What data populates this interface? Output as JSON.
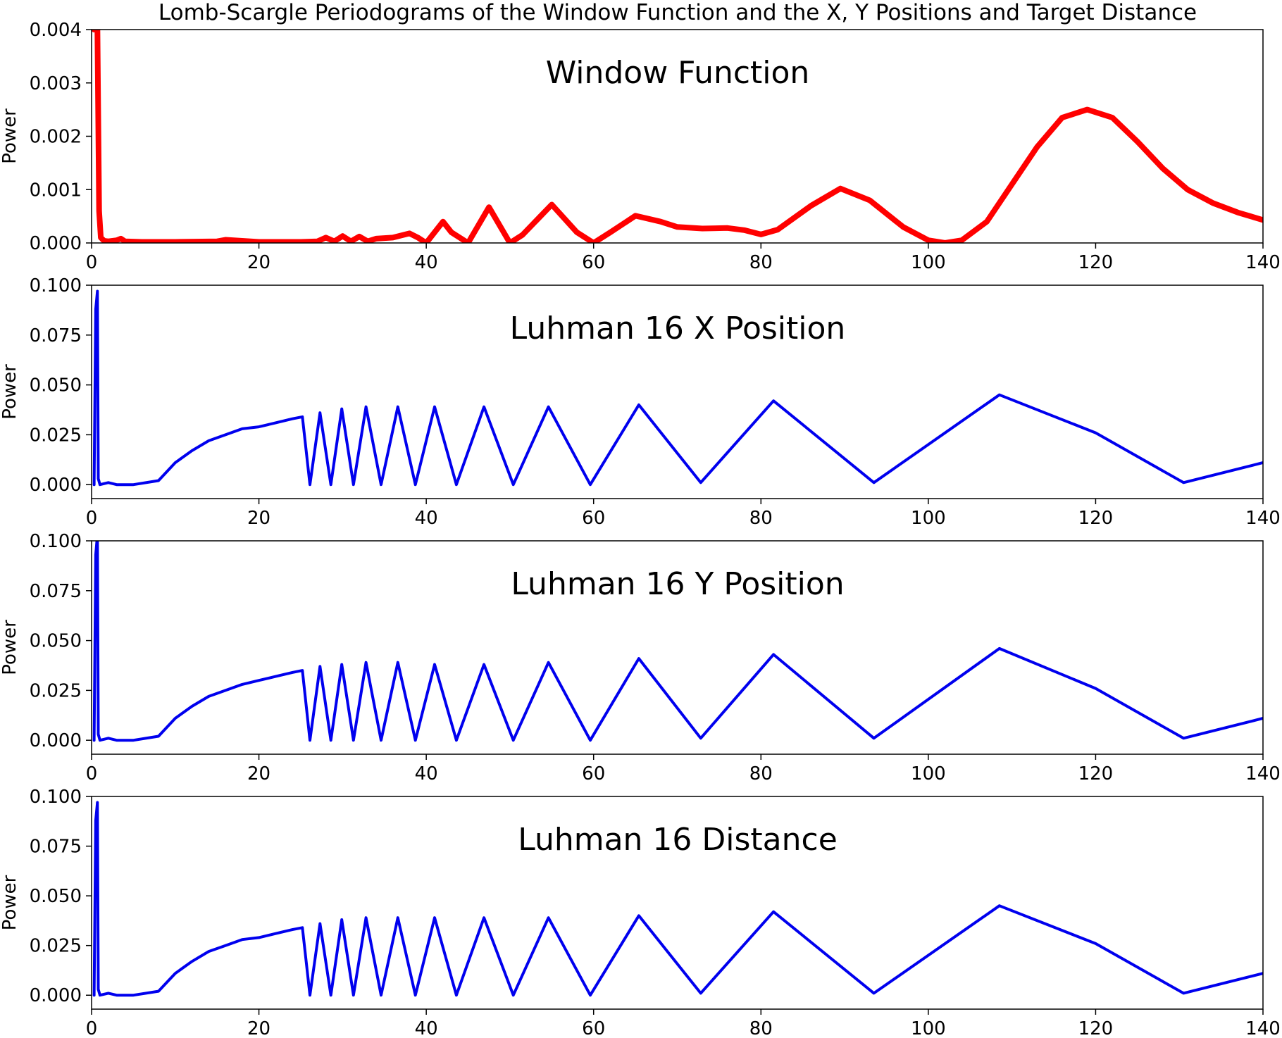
{
  "figure": {
    "suptitle": "Lomb-Scargle Periodograms of the Window Function and the X, Y Positions and Target Distance"
  },
  "colors": {
    "window": "#ff0000",
    "position": "#0000ee",
    "axes": "#000000"
  },
  "chart_data": [
    {
      "type": "line",
      "title": "Window Function",
      "xlabel": "",
      "ylabel": "Power",
      "xlim": [
        0,
        140
      ],
      "ylim": [
        0,
        0.004
      ],
      "xticks": [
        0,
        20,
        40,
        60,
        80,
        100,
        120,
        140
      ],
      "xtick_labels": [
        "0",
        "20",
        "40",
        "60",
        "80",
        "100",
        "120",
        "140"
      ],
      "yticks": [
        0,
        0.001,
        0.002,
        0.003,
        0.004
      ],
      "ytick_labels": [
        "0.000",
        "0.001",
        "0.002",
        "0.003",
        "0.004"
      ],
      "grid": false,
      "color": "#ff0000",
      "series": [
        {
          "x": [
            0.3,
            0.5,
            0.7,
            0.9,
            1.1,
            1.5,
            2,
            3,
            3.5,
            4,
            6,
            10,
            15,
            16,
            20,
            22,
            25,
            27,
            28,
            29,
            30,
            31,
            32,
            33,
            34,
            36,
            38,
            39,
            40,
            41,
            42,
            43,
            45,
            47.5,
            50,
            51.5,
            55,
            58,
            60,
            62,
            65,
            68,
            70,
            73,
            76,
            78,
            80,
            82,
            86,
            89.5,
            93,
            97,
            100,
            102,
            104,
            107,
            110,
            113,
            116,
            119,
            122,
            125,
            128,
            131,
            134,
            137,
            140
          ],
          "y": [
            0.004,
            0.004,
            0.004,
            0.0006,
            0.0001,
            4e-05,
            3e-05,
            5e-05,
            8e-05,
            3e-05,
            2e-05,
            2e-05,
            3e-05,
            6e-05,
            2e-05,
            2e-05,
            2e-05,
            3e-05,
            0.0001,
            3e-05,
            0.00013,
            3e-05,
            0.00012,
            3e-05,
            8e-05,
            0.0001,
            0.00018,
            0.0001,
            0.0,
            0.0002,
            0.0004,
            0.0002,
            0.0,
            0.00067,
            0.0,
            0.00015,
            0.00072,
            0.0002,
            0.0,
            0.0002,
            0.00051,
            0.0004,
            0.0003,
            0.00027,
            0.00028,
            0.00024,
            0.00016,
            0.00025,
            0.0007,
            0.00102,
            0.0008,
            0.0003,
            5e-05,
            0.0,
            5e-05,
            0.0004,
            0.0011,
            0.0018,
            0.00235,
            0.0025,
            0.00235,
            0.0019,
            0.0014,
            0.001,
            0.00075,
            0.00057,
            0.00043
          ]
        }
      ]
    },
    {
      "type": "line",
      "title": "Luhman 16 X Position",
      "xlabel": "",
      "ylabel": "Power",
      "xlim": [
        0,
        140
      ],
      "ylim": [
        -0.007,
        0.1
      ],
      "xticks": [
        0,
        20,
        40,
        60,
        80,
        100,
        120,
        140
      ],
      "xtick_labels": [
        "0",
        "20",
        "40",
        "60",
        "80",
        "100",
        "120",
        "140"
      ],
      "yticks": [
        0,
        0.025,
        0.05,
        0.075,
        0.1
      ],
      "ytick_labels": [
        "0.000",
        "0.025",
        "0.050",
        "0.075",
        "0.100"
      ],
      "grid": false,
      "color": "#0000ee",
      "series": [
        {
          "x": [
            0.3,
            0.5,
            0.7,
            0.8,
            1.0,
            2,
            3,
            5,
            8,
            10,
            12,
            14,
            16,
            18,
            20,
            22,
            24,
            25.2,
            26.1,
            27.3,
            28.6,
            29.9,
            31.3,
            32.8,
            34.6,
            36.6,
            38.7,
            41.0,
            43.6,
            46.9,
            50.4,
            54.6,
            59.6,
            65.4,
            72.8,
            81.5,
            93.5,
            108.5,
            120,
            130.5,
            140
          ],
          "y": [
            0.0,
            0.088,
            0.097,
            0.003,
            0.0,
            0.001,
            0.0,
            0.0,
            0.002,
            0.011,
            0.017,
            0.022,
            0.025,
            0.028,
            0.029,
            0.031,
            0.033,
            0.034,
            0.0,
            0.036,
            0.0,
            0.038,
            0.0,
            0.039,
            0.0,
            0.039,
            0.0,
            0.039,
            0.0,
            0.039,
            0.0,
            0.039,
            0.0,
            0.04,
            0.001,
            0.042,
            0.001,
            0.045,
            0.026,
            0.001,
            0.011
          ]
        }
      ]
    },
    {
      "type": "line",
      "title": "Luhman 16 Y Position",
      "xlabel": "",
      "ylabel": "Power",
      "xlim": [
        0,
        140
      ],
      "ylim": [
        -0.007,
        0.1
      ],
      "xticks": [
        0,
        20,
        40,
        60,
        80,
        100,
        120,
        140
      ],
      "xtick_labels": [
        "0",
        "20",
        "40",
        "60",
        "80",
        "100",
        "120",
        "140"
      ],
      "yticks": [
        0,
        0.025,
        0.05,
        0.075,
        0.1
      ],
      "ytick_labels": [
        "0.000",
        "0.025",
        "0.050",
        "0.075",
        "0.100"
      ],
      "grid": false,
      "color": "#0000ee",
      "series": [
        {
          "x": [
            0.3,
            0.5,
            0.7,
            0.8,
            1.0,
            2,
            3,
            5,
            8,
            10,
            12,
            14,
            16,
            18,
            20,
            22,
            24,
            25.2,
            26.1,
            27.3,
            28.6,
            29.9,
            31.3,
            32.8,
            34.6,
            36.6,
            38.7,
            41.0,
            43.6,
            46.9,
            50.4,
            54.6,
            59.6,
            65.4,
            72.8,
            81.5,
            93.5,
            108.5,
            120,
            130.5,
            140
          ],
          "y": [
            0.0,
            0.093,
            0.103,
            0.003,
            0.0,
            0.001,
            0.0,
            0.0,
            0.002,
            0.011,
            0.017,
            0.022,
            0.025,
            0.028,
            0.03,
            0.032,
            0.034,
            0.035,
            0.0,
            0.037,
            0.0,
            0.038,
            0.0,
            0.039,
            0.0,
            0.039,
            0.0,
            0.038,
            0.0,
            0.038,
            0.0,
            0.039,
            0.0,
            0.041,
            0.001,
            0.043,
            0.001,
            0.046,
            0.026,
            0.001,
            0.011
          ]
        }
      ]
    },
    {
      "type": "line",
      "title": "Luhman 16 Distance",
      "xlabel": "",
      "ylabel": "Power",
      "xlim": [
        0,
        140
      ],
      "ylim": [
        -0.007,
        0.1
      ],
      "xticks": [
        0,
        20,
        40,
        60,
        80,
        100,
        120,
        140
      ],
      "xtick_labels": [
        "0",
        "20",
        "40",
        "60",
        "80",
        "100",
        "120",
        "140"
      ],
      "yticks": [
        0,
        0.025,
        0.05,
        0.075,
        0.1
      ],
      "ytick_labels": [
        "0.000",
        "0.025",
        "0.050",
        "0.075",
        "0.100"
      ],
      "grid": false,
      "color": "#0000ee",
      "series": [
        {
          "x": [
            0.3,
            0.5,
            0.7,
            0.8,
            1.0,
            2,
            3,
            5,
            8,
            10,
            12,
            14,
            16,
            18,
            20,
            22,
            24,
            25.2,
            26.1,
            27.3,
            28.6,
            29.9,
            31.3,
            32.8,
            34.6,
            36.6,
            38.7,
            41.0,
            43.6,
            46.9,
            50.4,
            54.6,
            59.6,
            65.4,
            72.8,
            81.5,
            93.5,
            108.5,
            120,
            130.5,
            140
          ],
          "y": [
            0.0,
            0.088,
            0.097,
            0.003,
            0.0,
            0.001,
            0.0,
            0.0,
            0.002,
            0.011,
            0.017,
            0.022,
            0.025,
            0.028,
            0.029,
            0.031,
            0.033,
            0.034,
            0.0,
            0.036,
            0.0,
            0.038,
            0.0,
            0.039,
            0.0,
            0.039,
            0.0,
            0.039,
            0.0,
            0.039,
            0.0,
            0.039,
            0.0,
            0.04,
            0.001,
            0.042,
            0.001,
            0.045,
            0.026,
            0.001,
            0.011
          ]
        }
      ]
    }
  ]
}
